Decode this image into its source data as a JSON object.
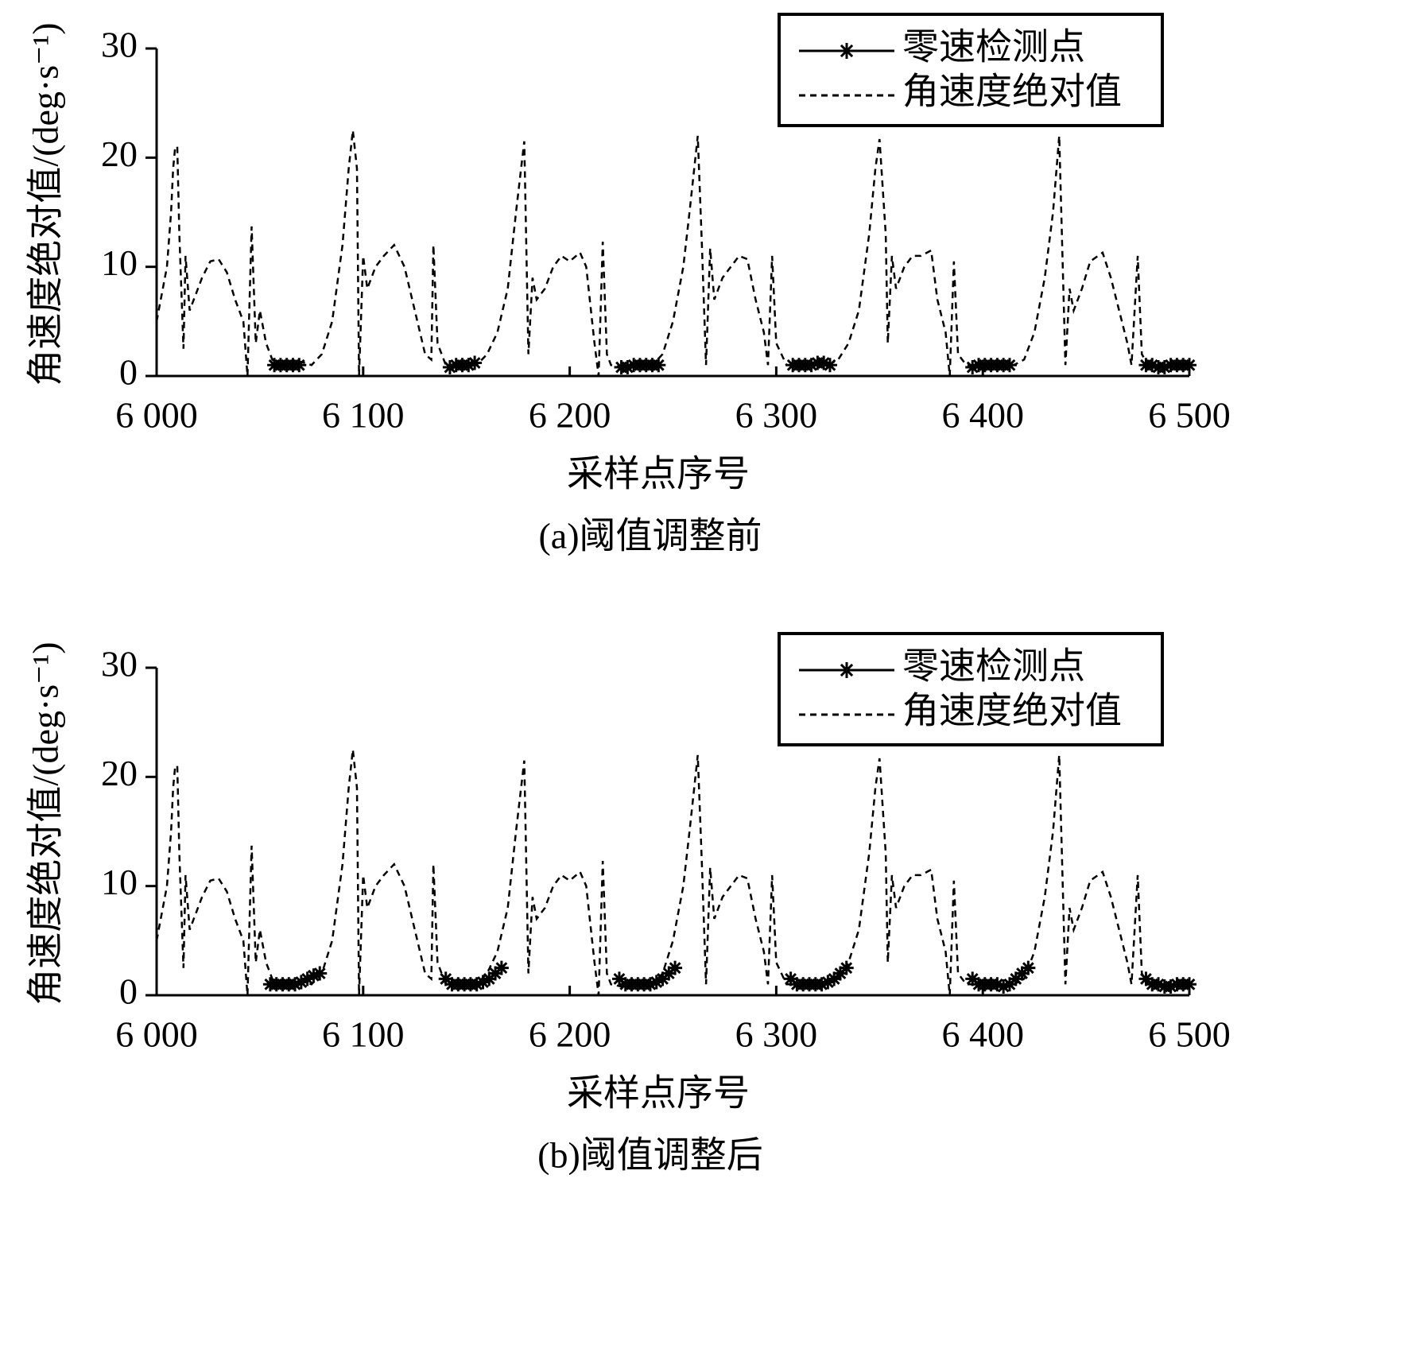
{
  "chart_data": [
    {
      "type": "line",
      "caption": "(a)阈值调整前",
      "xlabel": "采样点序号",
      "ylabel": "角速度绝对值/(deg·s⁻¹)",
      "xlim": [
        6000,
        6500
      ],
      "xticks": [
        {
          "value": 6000,
          "label": "6 000"
        },
        {
          "value": 6100,
          "label": "6 100"
        },
        {
          "value": 6200,
          "label": "6 200"
        },
        {
          "value": 6300,
          "label": "6 300"
        },
        {
          "value": 6400,
          "label": "6 400"
        },
        {
          "value": 6500,
          "label": "6 500"
        }
      ],
      "ylim": [
        0,
        30
      ],
      "yticks": [
        0,
        10,
        20,
        30
      ],
      "legend": "upper right",
      "series": [
        {
          "name": "零速检测点",
          "color": "#000000",
          "marker": "star",
          "x": [
            6057,
            6060,
            6063,
            6066,
            6069,
            6142,
            6145,
            6148,
            6151,
            6154,
            6225,
            6228,
            6231,
            6234,
            6237,
            6240,
            6243,
            6308,
            6311,
            6314,
            6317,
            6320,
            6323,
            6326,
            6395,
            6398,
            6401,
            6404,
            6407,
            6410,
            6413,
            6479,
            6482,
            6485,
            6488,
            6491,
            6494,
            6497,
            6500
          ],
          "values": [
            1,
            1,
            1,
            1,
            1,
            0.8,
            1,
            1,
            1,
            1.2,
            0.8,
            0.8,
            1,
            1,
            1,
            1,
            1,
            1,
            1,
            1,
            1,
            1.2,
            1.2,
            1,
            0.8,
            1,
            1,
            1,
            1,
            1,
            1,
            1,
            1,
            0.8,
            0.8,
            1,
            1,
            1,
            1
          ]
        },
        {
          "name": "角速度绝对值",
          "color": "#000000",
          "dash": "dashed",
          "x": [
            6000,
            6003,
            6005,
            6007,
            6008,
            6009,
            6010,
            6011,
            6013,
            6014,
            6016,
            6018,
            6022,
            6026,
            6030,
            6034,
            6038,
            6042,
            6044,
            6046,
            6048,
            6050,
            6053,
            6056,
            6060,
            6065,
            6070,
            6075,
            6080,
            6085,
            6090,
            6093,
            6095,
            6097,
            6098,
            6100,
            6102,
            6106,
            6110,
            6115,
            6120,
            6125,
            6130,
            6133,
            6134,
            6136,
            6140,
            6145,
            6150,
            6155,
            6160,
            6165,
            6170,
            6174,
            6178,
            6180,
            6182,
            6184,
            6188,
            6192,
            6196,
            6200,
            6205,
            6208,
            6212,
            6214,
            6216,
            6218,
            6220,
            6225,
            6230,
            6235,
            6240,
            6245,
            6250,
            6255,
            6258,
            6262,
            6264,
            6266,
            6268,
            6270,
            6274,
            6278,
            6282,
            6286,
            6290,
            6294,
            6296,
            6298,
            6300,
            6305,
            6310,
            6315,
            6320,
            6325,
            6330,
            6335,
            6340,
            6345,
            6348,
            6350,
            6353,
            6354,
            6356,
            6358,
            6362,
            6366,
            6370,
            6375,
            6378,
            6382,
            6384,
            6386,
            6388,
            6392,
            6400,
            6405,
            6410,
            6415,
            6420,
            6425,
            6430,
            6434,
            6437,
            6440,
            6442,
            6444,
            6448,
            6452,
            6458,
            6462,
            6466,
            6470,
            6472,
            6475,
            6477,
            6480,
            6490,
            6500
          ],
          "values": [
            5,
            8,
            10,
            15,
            19,
            21,
            21,
            13,
            2.5,
            11,
            6,
            7,
            9,
            10.5,
            10.7,
            9.5,
            7,
            5,
            0,
            13.7,
            3,
            6,
            3,
            1.5,
            1,
            1,
            1.3,
            1,
            2,
            5,
            12,
            19,
            22.5,
            19,
            0,
            11,
            8,
            10,
            11,
            12,
            10,
            6,
            2,
            1.5,
            12,
            3,
            1,
            1,
            1,
            1,
            2,
            4,
            8,
            15,
            21.5,
            2,
            9,
            7,
            8,
            10,
            11,
            10.5,
            11.3,
            10,
            3,
            0,
            12.3,
            2,
            1,
            0.8,
            1,
            1,
            1,
            2,
            5,
            10,
            15,
            22,
            12,
            1,
            11.7,
            7,
            9,
            10,
            11,
            10.7,
            7,
            4,
            1,
            11,
            3,
            1,
            1,
            1,
            1.2,
            1,
            1.5,
            3,
            6,
            13,
            19,
            21.7,
            13,
            3,
            11,
            8,
            10,
            11,
            11,
            11.5,
            7,
            4,
            0,
            10.5,
            2,
            1,
            1,
            1,
            1,
            1,
            1.5,
            4,
            9,
            15,
            22,
            1,
            8,
            6,
            8,
            10.5,
            11.3,
            9,
            6,
            3,
            1,
            11,
            2,
            1,
            1,
            1
          ]
        }
      ]
    },
    {
      "type": "line",
      "caption": "(b)阈值调整后",
      "xlabel": "采样点序号",
      "ylabel": "角速度绝对值/(deg·s⁻¹)",
      "xlim": [
        6000,
        6500
      ],
      "xticks": [
        {
          "value": 6000,
          "label": "6 000"
        },
        {
          "value": 6100,
          "label": "6 100"
        },
        {
          "value": 6200,
          "label": "6 200"
        },
        {
          "value": 6300,
          "label": "6 300"
        },
        {
          "value": 6400,
          "label": "6 400"
        },
        {
          "value": 6500,
          "label": "6 500"
        }
      ],
      "ylim": [
        0,
        30
      ],
      "yticks": [
        0,
        10,
        20,
        30
      ],
      "legend": "upper right",
      "series": [
        {
          "name": "零速检测点",
          "color": "#000000",
          "marker": "star",
          "x": [
            6055,
            6058,
            6061,
            6064,
            6067,
            6070,
            6073,
            6076,
            6079,
            6140,
            6143,
            6146,
            6149,
            6152,
            6155,
            6158,
            6161,
            6164,
            6167,
            6224,
            6227,
            6230,
            6233,
            6236,
            6239,
            6242,
            6245,
            6248,
            6251,
            6307,
            6310,
            6313,
            6316,
            6319,
            6322,
            6325,
            6328,
            6331,
            6334,
            6395,
            6398,
            6401,
            6404,
            6407,
            6410,
            6413,
            6416,
            6419,
            6422,
            6479,
            6482,
            6485,
            6488,
            6491,
            6494,
            6497,
            6500
          ],
          "values": [
            1,
            1,
            1,
            1,
            1,
            1.2,
            1.5,
            1.8,
            2,
            1.5,
            1,
            1,
            1,
            1,
            1,
            1.2,
            1.5,
            2,
            2.5,
            1.5,
            1,
            1,
            1,
            1,
            1,
            1.2,
            1.5,
            2,
            2.5,
            1.5,
            1,
            1,
            1,
            1,
            1,
            1.2,
            1.5,
            2,
            2.5,
            1.5,
            1,
            1,
            1,
            1,
            0.8,
            1,
            1.5,
            2,
            2.5,
            1.5,
            1,
            1,
            0.8,
            0.8,
            1,
            1,
            1
          ]
        },
        {
          "name": "角速度绝对值",
          "color": "#000000",
          "dash": "dashed",
          "x": [
            6000,
            6003,
            6005,
            6007,
            6008,
            6009,
            6010,
            6011,
            6013,
            6014,
            6016,
            6018,
            6022,
            6026,
            6030,
            6034,
            6038,
            6042,
            6044,
            6046,
            6048,
            6050,
            6053,
            6056,
            6060,
            6065,
            6070,
            6075,
            6080,
            6085,
            6090,
            6093,
            6095,
            6097,
            6098,
            6100,
            6102,
            6106,
            6110,
            6115,
            6120,
            6125,
            6130,
            6133,
            6134,
            6136,
            6140,
            6145,
            6150,
            6155,
            6160,
            6165,
            6170,
            6174,
            6178,
            6180,
            6182,
            6184,
            6188,
            6192,
            6196,
            6200,
            6205,
            6208,
            6212,
            6214,
            6216,
            6218,
            6220,
            6225,
            6230,
            6235,
            6240,
            6245,
            6250,
            6255,
            6258,
            6262,
            6264,
            6266,
            6268,
            6270,
            6274,
            6278,
            6282,
            6286,
            6290,
            6294,
            6296,
            6298,
            6300,
            6305,
            6310,
            6315,
            6320,
            6325,
            6330,
            6335,
            6340,
            6345,
            6348,
            6350,
            6353,
            6354,
            6356,
            6358,
            6362,
            6366,
            6370,
            6375,
            6378,
            6382,
            6384,
            6386,
            6388,
            6392,
            6400,
            6405,
            6410,
            6415,
            6420,
            6425,
            6430,
            6434,
            6437,
            6440,
            6442,
            6444,
            6448,
            6452,
            6458,
            6462,
            6466,
            6470,
            6472,
            6475,
            6477,
            6480,
            6490,
            6500
          ],
          "values": [
            5,
            8,
            10,
            15,
            19,
            21,
            21,
            13,
            2.5,
            11,
            6,
            7,
            9,
            10.5,
            10.7,
            9.5,
            7,
            5,
            0,
            13.7,
            3,
            6,
            3,
            1.5,
            1,
            1,
            1.3,
            1,
            2,
            5,
            12,
            19,
            22.5,
            19,
            0,
            11,
            8,
            10,
            11,
            12,
            10,
            6,
            2,
            1.5,
            12,
            3,
            1,
            1,
            1,
            1,
            2,
            4,
            8,
            15,
            21.5,
            2,
            9,
            7,
            8,
            10,
            11,
            10.5,
            11.3,
            10,
            3,
            0,
            12.3,
            2,
            1,
            0.8,
            1,
            1,
            1,
            2,
            5,
            10,
            15,
            22,
            12,
            1,
            11.7,
            7,
            9,
            10,
            11,
            10.7,
            7,
            4,
            1,
            11,
            3,
            1,
            1,
            1,
            1.2,
            1,
            1.5,
            3,
            6,
            13,
            19,
            21.7,
            13,
            3,
            11,
            8,
            10,
            11,
            11,
            11.5,
            7,
            4,
            0,
            10.5,
            2,
            1,
            1,
            1,
            1,
            1,
            1.5,
            4,
            9,
            15,
            22,
            1,
            8,
            6,
            8,
            10.5,
            11.3,
            9,
            6,
            3,
            1,
            11,
            2,
            1,
            1,
            1
          ]
        }
      ]
    }
  ]
}
